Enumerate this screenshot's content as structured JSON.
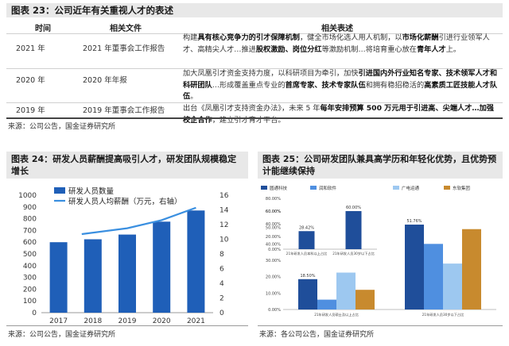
{
  "table23": {
    "title": "图表 23：公司近年有关重视人才的表述",
    "headers": [
      "时间",
      "相关文件",
      "相关表述"
    ],
    "rows": [
      {
        "time": "2021 年",
        "file": "2021 年董事会工作报告",
        "desc_html": "构建<b>具有核心竞争力的引才保障机制</b>，健全市场化选人用人机制，以<b>市场化薪酬</b>引进行业领军人才、高精尖人才…推进<b>股权激励、岗位分红</b>等激励机制…将培育重心放在<b>青年人才</b>上。"
      },
      {
        "time": "2020 年",
        "file": "2020 年年报",
        "desc_html": "加大凤凰引才资金支持力度，以科研项目为牵引，加快<b>引进国内外行业知名专家、技术领军人才和科研团队</b>…形成覆盖重点专业的<b>首席专家、技术专家队伍</b>和拥有稳招稳活的<b>高素质工匠技能人才队伍</b>。"
      },
      {
        "time": "2019 年",
        "file": "2019 年董事会工作报告",
        "desc_html": "出台《凤凰引才支持资金办法》，未来 5 年<b>每年安排预算 500 万元用于引进高、尖端人才…加强校企合作</b>，建立引才育才平台。"
      }
    ],
    "source": "来源：公司公告，国金证券研究所"
  },
  "chart24": {
    "title": "图表 24：研发人员薪酬提高吸引人才，研发团队规模稳定增长",
    "source": "来源：公司公告，国金证券研究所"
  },
  "chart25": {
    "title": "图表 25：公司研发团队兼具高学历和年轻化优势，且优势预计能继续保持",
    "source": "来源：各公司公告，国金证券研究所",
    "legend_items": [
      "圆通科技",
      "润和软件",
      "广电运通",
      "东软集团"
    ],
    "bar_colors": [
      "#1f4e9a",
      "#4f8fe0",
      "#9dc8f0",
      "#c88a2e"
    ]
  },
  "chart_data": [
    {
      "type": "bar",
      "id": "chart24",
      "categories": [
        "2017",
        "2018",
        "2019",
        "2020",
        "2021"
      ],
      "series": [
        {
          "name": "研发人员数量",
          "axis": "left",
          "kind": "bar",
          "values": [
            600,
            625,
            665,
            775,
            870
          ],
          "color": "#1f5fb8"
        },
        {
          "name": "研发人员人均薪酬（万元，右轴）",
          "axis": "right",
          "kind": "line",
          "values": [
            null,
            10.7,
            11.5,
            12.6,
            14.3
          ],
          "color": "#3a8fe0"
        }
      ],
      "ylim": [
        0,
        1000
      ],
      "yticks": [
        0,
        100,
        200,
        300,
        400,
        500,
        600,
        700,
        800,
        900,
        1000
      ],
      "y2lim": [
        0,
        16
      ],
      "y2ticks": [
        0,
        2,
        4,
        6,
        8,
        10,
        12,
        14,
        16
      ],
      "grid": false,
      "legend": "top-left"
    },
    {
      "type": "bar",
      "id": "chart25-top",
      "categories": [
        "21年研发人员本科以上占比",
        "21年研发人员30岁以下占比"
      ],
      "values": [
        28.42,
        60
      ],
      "data_labels": [
        "28.42%",
        "60.00%"
      ],
      "ylim": [
        0,
        80
      ],
      "yticks": [
        "0.00%",
        "20.00%",
        "40.00%",
        "60.00%",
        "80.00%"
      ],
      "color": "#1f4e9a"
    },
    {
      "type": "bar",
      "id": "chart25-bottom",
      "categories": [
        "21年研发人员硕士及以上占比",
        "21年研发人员30岁以下占比"
      ],
      "series": [
        {
          "name": "圆通科技",
          "values": [
            18.5,
            51.76
          ]
        },
        {
          "name": "润和软件",
          "values": [
            6,
            40
          ]
        },
        {
          "name": "广电运通",
          "values": [
            22.5,
            28
          ]
        },
        {
          "name": "东软集团",
          "values": [
            12,
            49
          ]
        }
      ],
      "data_labels": [
        "18.50%",
        "51.76%"
      ],
      "ylim": [
        0,
        60
      ],
      "yticks": [
        "0.00%",
        "10.00%",
        "20.00%",
        "30.00%",
        "40.00%",
        "50.00%",
        "60.00%"
      ]
    }
  ]
}
